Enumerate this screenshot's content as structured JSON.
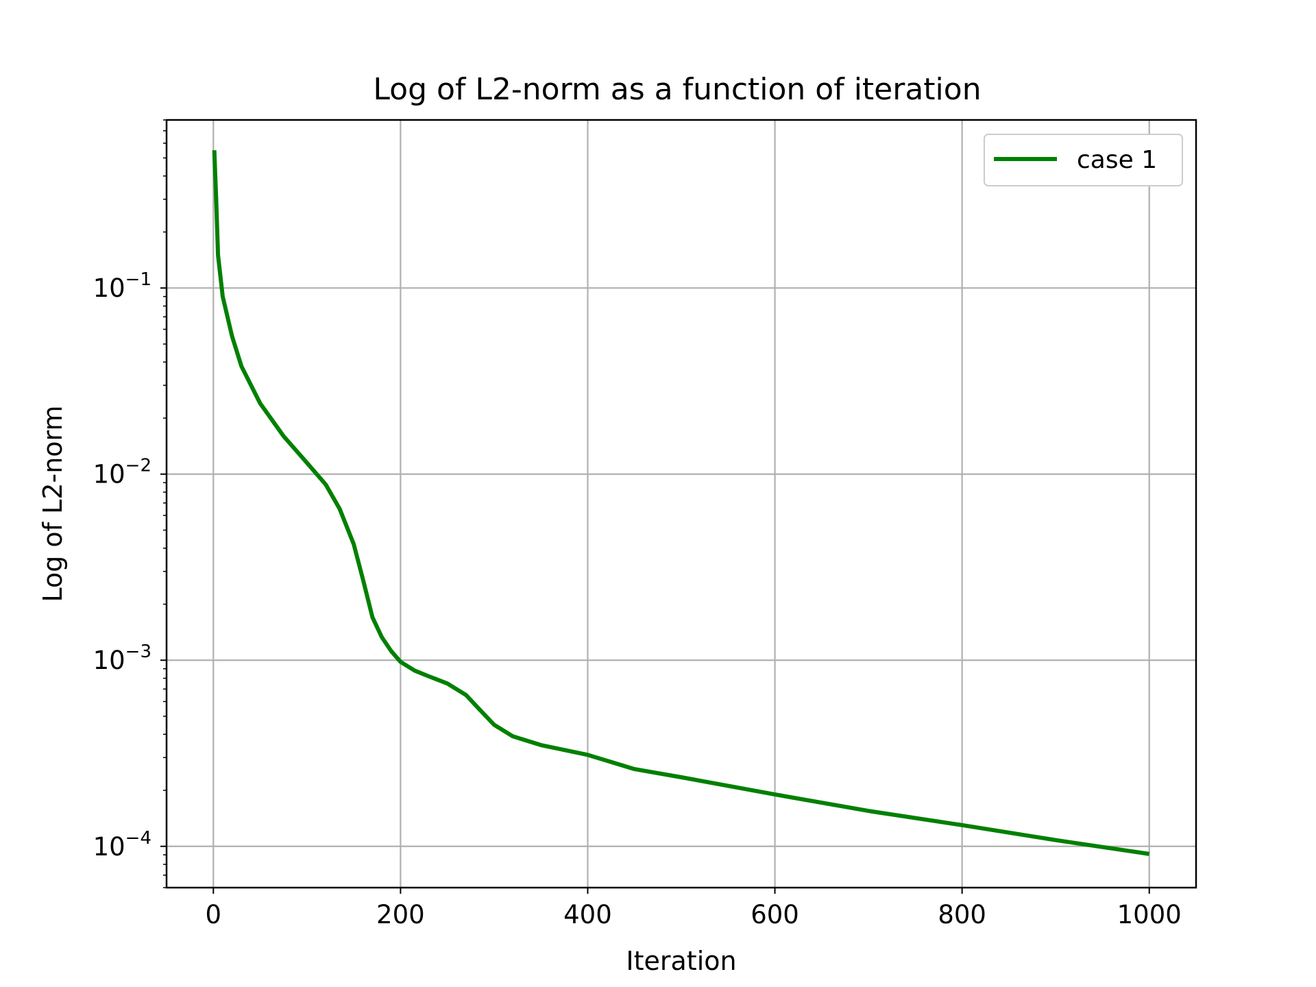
{
  "chart_data": {
    "type": "line",
    "title": "Log of L2-norm as a function of iteration",
    "xlabel": "Iteration",
    "ylabel": "Log of L2-norm",
    "yscale": "log",
    "xlim": [
      -50,
      1050
    ],
    "ylim": [
      6e-05,
      0.8
    ],
    "grid": true,
    "legend_position": "top-right",
    "x_ticks": [
      0,
      200,
      400,
      600,
      800,
      1000
    ],
    "x_tick_labels": [
      "0",
      "200",
      "400",
      "600",
      "800",
      "1000"
    ],
    "y_ticks": [
      0.0001,
      0.001,
      0.01,
      0.1
    ],
    "y_tick_labels": [
      {
        "base": "10",
        "exp": "−4"
      },
      {
        "base": "10",
        "exp": "−3"
      },
      {
        "base": "10",
        "exp": "−2"
      },
      {
        "base": "10",
        "exp": "−1"
      }
    ],
    "series": [
      {
        "name": "case 1",
        "color": "#008000",
        "x": [
          1,
          3,
          5,
          10,
          20,
          30,
          50,
          75,
          100,
          120,
          135,
          150,
          160,
          170,
          180,
          190,
          200,
          215,
          230,
          250,
          270,
          285,
          300,
          320,
          350,
          400,
          450,
          500,
          600,
          700,
          800,
          900,
          1000
        ],
        "y": [
          0.55,
          0.3,
          0.15,
          0.09,
          0.055,
          0.038,
          0.024,
          0.016,
          0.0115,
          0.0088,
          0.0065,
          0.0042,
          0.0027,
          0.0017,
          0.00133,
          0.00112,
          0.00098,
          0.00088,
          0.00082,
          0.00075,
          0.00065,
          0.00054,
          0.00045,
          0.00039,
          0.00035,
          0.00031,
          0.00026,
          0.000235,
          0.00019,
          0.000155,
          0.00013,
          0.000108,
          9.1e-05
        ]
      }
    ]
  }
}
